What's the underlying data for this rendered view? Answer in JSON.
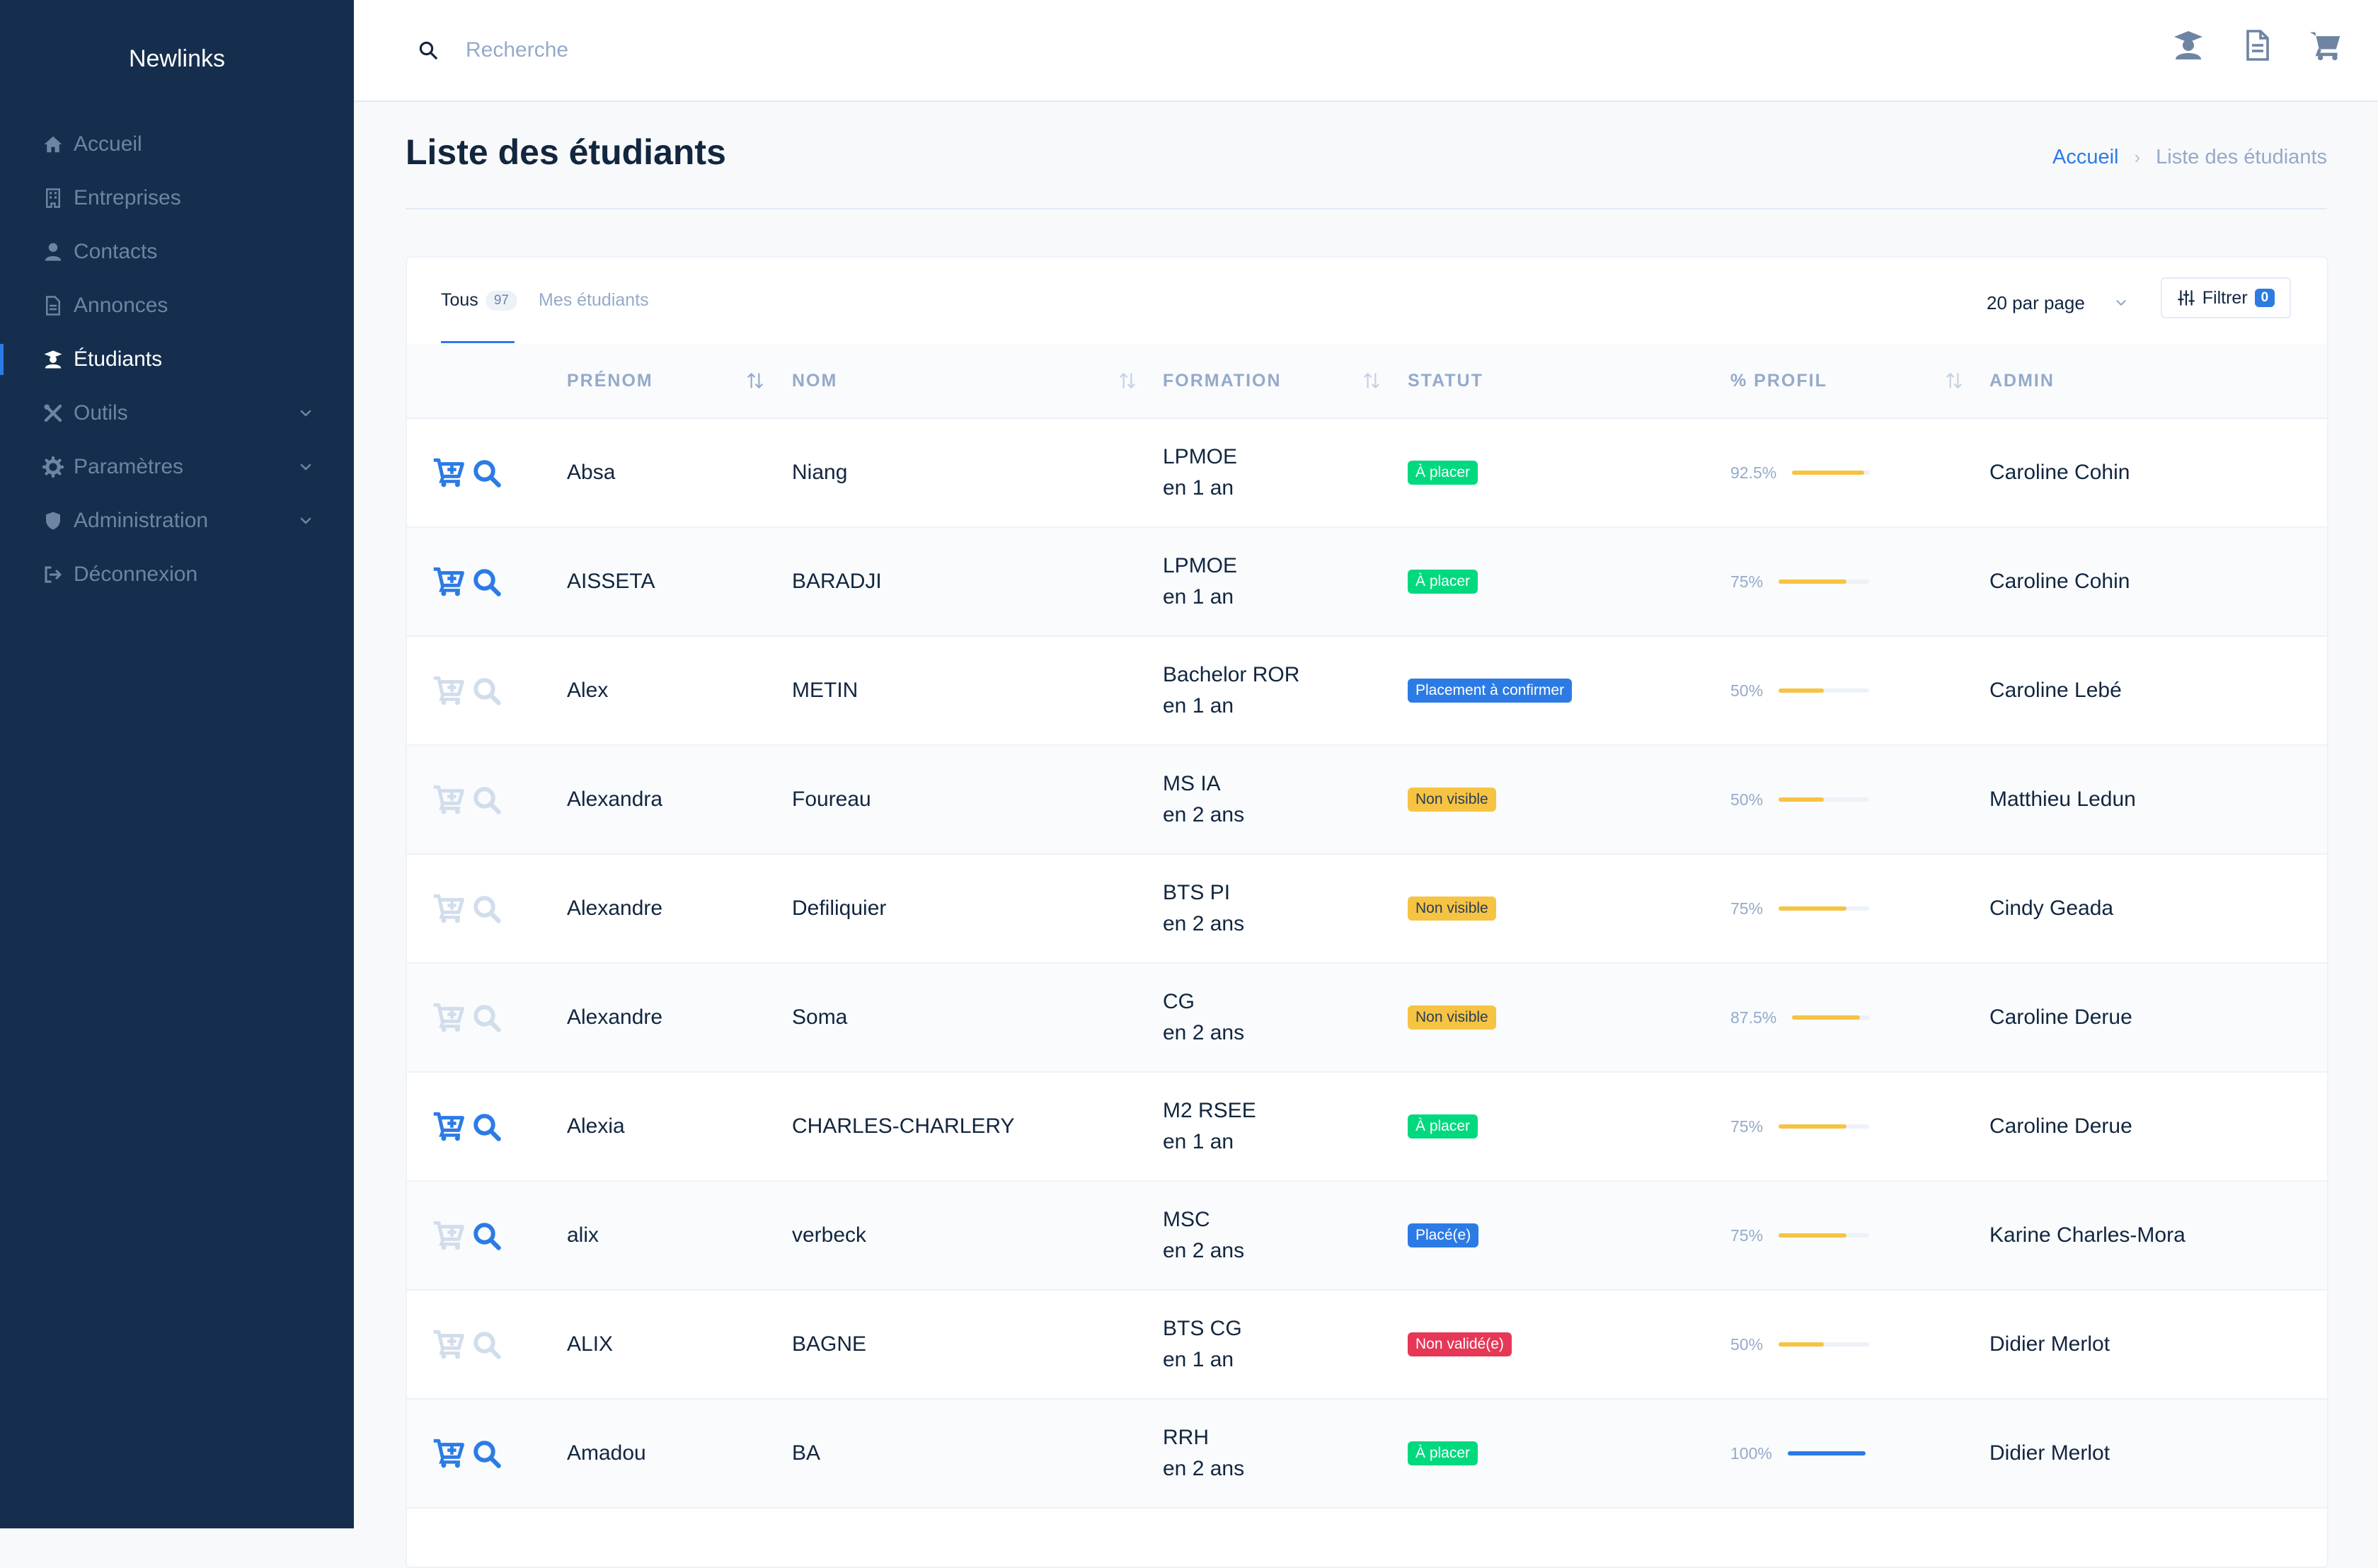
{
  "sidebar": {
    "brand": "Newlinks",
    "items": [
      {
        "label": "Accueil",
        "icon": "home-icon",
        "active": false,
        "expandable": false
      },
      {
        "label": "Entreprises",
        "icon": "building-icon",
        "active": false,
        "expandable": false
      },
      {
        "label": "Contacts",
        "icon": "user-icon",
        "active": false,
        "expandable": false
      },
      {
        "label": "Annonces",
        "icon": "file-icon",
        "active": false,
        "expandable": false
      },
      {
        "label": "Étudiants",
        "icon": "graduate-icon",
        "active": true,
        "expandable": false
      },
      {
        "label": "Outils",
        "icon": "tools-icon",
        "active": false,
        "expandable": true
      },
      {
        "label": "Paramètres",
        "icon": "gear-icon",
        "active": false,
        "expandable": true
      },
      {
        "label": "Administration",
        "icon": "shield-icon",
        "active": false,
        "expandable": true
      },
      {
        "label": "Déconnexion",
        "icon": "logout-icon",
        "active": false,
        "expandable": false
      }
    ]
  },
  "search": {
    "placeholder": "Recherche"
  },
  "header": {
    "title": "Liste des étudiants"
  },
  "breadcrumb": {
    "home": "Accueil",
    "current": "Liste des étudiants"
  },
  "tabs": [
    {
      "label": "Tous",
      "count": "97",
      "active": true
    },
    {
      "label": "Mes étudiants",
      "active": false
    }
  ],
  "toolbar": {
    "per_page": "20 par page",
    "filter_label": "Filtrer",
    "filter_count": "0"
  },
  "table": {
    "columns": [
      "PRÉNOM",
      "NOM",
      "FORMATION",
      "STATUT",
      "% PROFIL",
      "ADMIN"
    ],
    "rows": [
      {
        "prenom": "Absa",
        "nom": "Niang",
        "formation": "LPMOE",
        "duree": "en 1 an",
        "statut": "À placer",
        "statut_color": "#00d97e",
        "profil": "92.5%",
        "profil_value": 92.5,
        "admin": "Caroline Cohin",
        "actions_active": true
      },
      {
        "prenom": "AISSETA",
        "nom": "BARADJI",
        "formation": "LPMOE",
        "duree": "en 1 an",
        "statut": "À placer",
        "statut_color": "#00d97e",
        "profil": "75%",
        "profil_value": 75,
        "admin": "Caroline Cohin",
        "actions_active": true
      },
      {
        "prenom": "Alex",
        "nom": "METIN",
        "formation": "Bachelor ROR",
        "duree": "en 1 an",
        "statut": "Placement à confirmer",
        "statut_color": "#2c7be5",
        "profil": "50%",
        "profil_value": 50,
        "admin": "Caroline Lebé",
        "actions_active": false
      },
      {
        "prenom": "Alexandra",
        "nom": "Foureau",
        "formation": "MS IA",
        "duree": "en 2 ans",
        "statut": "Non visible",
        "statut_color": "#f6c343",
        "profil": "50%",
        "profil_value": 50,
        "admin": "Matthieu Ledun",
        "actions_active": false
      },
      {
        "prenom": "Alexandre",
        "nom": "Defiliquier",
        "formation": "BTS PI",
        "duree": "en 2 ans",
        "statut": "Non visible",
        "statut_color": "#f6c343",
        "profil": "75%",
        "profil_value": 75,
        "admin": "Cindy Geada",
        "actions_active": false
      },
      {
        "prenom": "Alexandre",
        "nom": "Soma",
        "formation": "CG",
        "duree": "en 2 ans",
        "statut": "Non visible",
        "statut_color": "#f6c343",
        "profil": "87.5%",
        "profil_value": 87.5,
        "admin": "Caroline Derue",
        "actions_active": false
      },
      {
        "prenom": "Alexia",
        "nom": "CHARLES-CHARLERY",
        "formation": "M2 RSEE",
        "duree": "en 1 an",
        "statut": "À placer",
        "statut_color": "#00d97e",
        "profil": "75%",
        "profil_value": 75,
        "admin": "Caroline Derue",
        "actions_active": true
      },
      {
        "prenom": "alix",
        "nom": "verbeck",
        "formation": "MSC",
        "duree": "en 2 ans",
        "statut": "Placé(e)",
        "statut_color": "#2c7be5",
        "profil": "75%",
        "profil_value": 75,
        "admin": "Karine Charles-Mora",
        "actions_active": "partial"
      },
      {
        "prenom": "ALIX",
        "nom": "BAGNE",
        "formation": "BTS CG",
        "duree": "en 1 an",
        "statut": "Non validé(e)",
        "statut_color": "#e63757",
        "profil": "50%",
        "profil_value": 50,
        "admin": "Didier Merlot",
        "actions_active": false
      },
      {
        "prenom": "Amadou",
        "nom": "BA",
        "formation": "RRH",
        "duree": "en 2 ans",
        "statut": "À placer",
        "statut_color": "#00d97e",
        "profil": "100%",
        "profil_value": 100,
        "admin": "Didier Merlot",
        "actions_active": true
      }
    ]
  },
  "colors": {
    "sidebar_bg": "#152e4d",
    "accent": "#2c7be5",
    "warning": "#f6c343",
    "success": "#00d97e",
    "danger": "#e63757",
    "muted": "#95aac9",
    "icon_disabled": "#d2ddec"
  }
}
